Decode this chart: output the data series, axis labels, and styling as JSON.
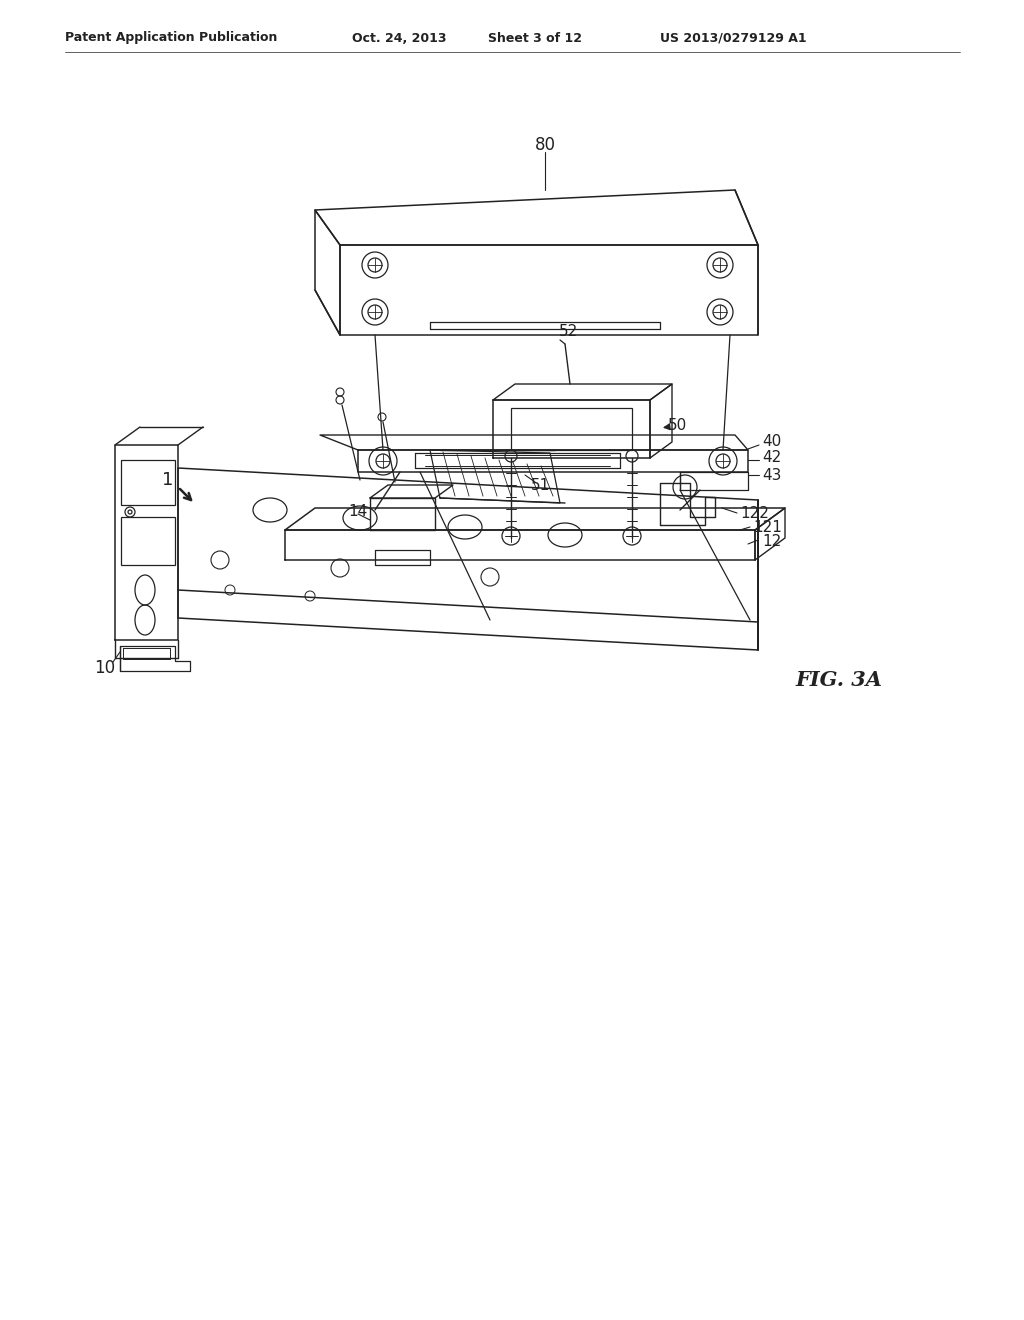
{
  "bg_color": "#ffffff",
  "lc": "#222222",
  "header_left": "Patent Application Publication",
  "header_date": "Oct. 24, 2013",
  "header_sheet": "Sheet 3 of 12",
  "header_patent": "US 2013/0279129 A1",
  "fig_label": "FIG. 3A"
}
